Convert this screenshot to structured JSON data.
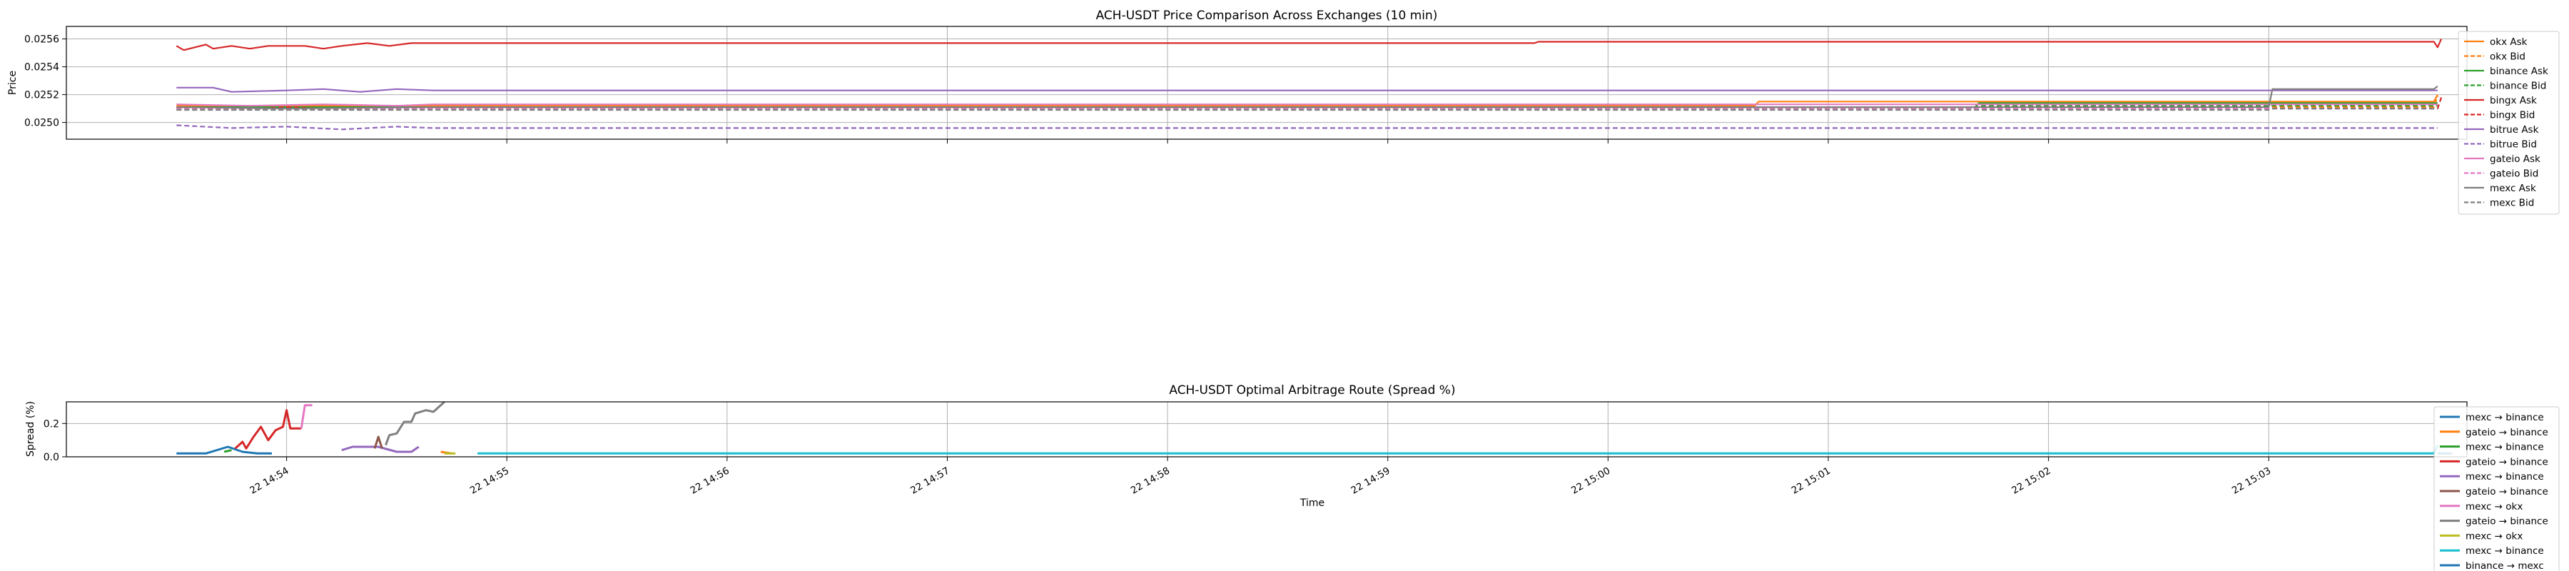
{
  "chart_data": [
    {
      "type": "line",
      "title": "ACH-USDT Price Comparison Across Exchanges (10 min)",
      "xlabel": "",
      "ylabel": "Price",
      "ylim": [
        0.02488,
        0.02569
      ],
      "xlim": [
        "14:53:00",
        "15:03:54"
      ],
      "yticks": [
        "0.0250",
        "0.0252",
        "0.0254",
        "0.0256"
      ],
      "grid": true,
      "legend": "top-right",
      "series": [
        {
          "name": "okx Ask",
          "color": "#ff7f0e",
          "dash": "solid",
          "points": [
            [
              "14:53:30",
              0.02512
            ],
            [
              "15:00:40",
              0.02512
            ],
            [
              "15:00:41",
              0.02515
            ],
            [
              "15:03:45",
              0.02515
            ],
            [
              "15:03:46",
              0.0252
            ]
          ]
        },
        {
          "name": "okx Bid",
          "color": "#ff7f0e",
          "dash": "dashed",
          "points": [
            [
              "14:53:30",
              0.0251
            ],
            [
              "15:00:40",
              0.0251
            ],
            [
              "15:00:41",
              0.02511
            ],
            [
              "15:03:45",
              0.02511
            ],
            [
              "15:03:46",
              0.02519
            ]
          ]
        },
        {
          "name": "binance Ask",
          "color": "#2ca02c",
          "dash": "solid",
          "points": [
            [
              "14:53:30",
              0.02511
            ],
            [
              "15:01:40",
              0.02511
            ],
            [
              "15:01:41",
              0.02514
            ],
            [
              "15:03:46",
              0.02514
            ]
          ]
        },
        {
          "name": "binance Bid",
          "color": "#2ca02c",
          "dash": "dashed",
          "points": [
            [
              "14:53:30",
              0.0251
            ],
            [
              "15:01:40",
              0.0251
            ],
            [
              "15:01:41",
              0.02512
            ],
            [
              "15:03:46",
              0.02512
            ]
          ]
        },
        {
          "name": "bingx Ask",
          "color": "#d62728",
          "dash": "solid",
          "points": [
            [
              "14:53:30",
              0.02555
            ],
            [
              "14:53:32",
              0.02552
            ],
            [
              "14:53:35",
              0.02554
            ],
            [
              "14:53:38",
              0.02556
            ],
            [
              "14:53:40",
              0.02553
            ],
            [
              "14:53:45",
              0.02555
            ],
            [
              "14:53:50",
              0.02553
            ],
            [
              "14:53:55",
              0.02555
            ],
            [
              "14:54:05",
              0.02555
            ],
            [
              "14:54:10",
              0.02553
            ],
            [
              "14:54:15",
              0.02555
            ],
            [
              "14:54:22",
              0.02557
            ],
            [
              "14:54:28",
              0.02555
            ],
            [
              "14:54:34",
              0.02557
            ],
            [
              "14:54:40",
              0.02557
            ],
            [
              "14:59:40",
              0.02557
            ],
            [
              "14:59:41",
              0.02558
            ],
            [
              "15:03:45",
              0.02558
            ],
            [
              "15:03:46",
              0.02554
            ],
            [
              "15:03:47",
              0.0256
            ]
          ]
        },
        {
          "name": "bingx Bid",
          "color": "#d62728",
          "dash": "dashed",
          "points": [
            [
              "14:53:30",
              0.02511
            ],
            [
              "14:53:45",
              0.02509
            ],
            [
              "14:54:00",
              0.02511
            ],
            [
              "14:54:20",
              0.02509
            ],
            [
              "14:54:40",
              0.0251
            ],
            [
              "15:03:46",
              0.0251
            ],
            [
              "15:03:47",
              0.02518
            ]
          ]
        },
        {
          "name": "bitrue Ask",
          "color": "#9467bd",
          "dash": "solid",
          "points": [
            [
              "14:53:30",
              0.02525
            ],
            [
              "14:53:40",
              0.02525
            ],
            [
              "14:53:45",
              0.02522
            ],
            [
              "14:54:00",
              0.02523
            ],
            [
              "14:54:10",
              0.02524
            ],
            [
              "14:54:20",
              0.02522
            ],
            [
              "14:54:30",
              0.02524
            ],
            [
              "14:54:40",
              0.02523
            ],
            [
              "15:03:46",
              0.02523
            ]
          ]
        },
        {
          "name": "bitrue Bid",
          "color": "#9467bd",
          "dash": "dashed",
          "points": [
            [
              "14:53:30",
              0.02498
            ],
            [
              "14:53:45",
              0.02496
            ],
            [
              "14:54:00",
              0.02497
            ],
            [
              "14:54:15",
              0.02495
            ],
            [
              "14:54:30",
              0.02497
            ],
            [
              "14:54:40",
              0.02496
            ],
            [
              "15:03:46",
              0.02496
            ]
          ]
        },
        {
          "name": "gateio Ask",
          "color": "#e377c2",
          "dash": "solid",
          "points": [
            [
              "14:53:30",
              0.02513
            ],
            [
              "14:53:50",
              0.02512
            ],
            [
              "14:54:10",
              0.02513
            ],
            [
              "14:54:30",
              0.02512
            ],
            [
              "14:54:40",
              0.02513
            ],
            [
              "15:03:46",
              0.02513
            ]
          ]
        },
        {
          "name": "gateio Bid",
          "color": "#e377c2",
          "dash": "dashed",
          "points": [
            [
              "14:53:30",
              0.0251
            ],
            [
              "14:54:00",
              0.02509
            ],
            [
              "14:54:20",
              0.0251
            ],
            [
              "15:03:46",
              0.0251
            ]
          ]
        },
        {
          "name": "mexc Ask",
          "color": "#7f7f7f",
          "dash": "solid",
          "points": [
            [
              "14:53:30",
              0.02511
            ],
            [
              "14:54:00",
              0.0251
            ],
            [
              "14:54:40",
              0.02511
            ],
            [
              "15:03:00",
              0.02511
            ],
            [
              "15:03:01",
              0.02524
            ],
            [
              "15:03:45",
              0.02524
            ],
            [
              "15:03:46",
              0.02526
            ]
          ]
        },
        {
          "name": "mexc Bid",
          "color": "#7f7f7f",
          "dash": "dashed",
          "points": [
            [
              "14:53:30",
              0.02509
            ],
            [
              "14:54:40",
              0.02509
            ],
            [
              "15:03:00",
              0.02509
            ],
            [
              "15:03:01",
              0.0251
            ],
            [
              "15:03:46",
              0.0251
            ]
          ]
        }
      ]
    },
    {
      "type": "line",
      "title": "ACH-USDT Optimal Arbitrage Route (Spread %)",
      "xlabel": "Time",
      "ylabel": "Spread (%)",
      "ylim": [
        0.0,
        0.33
      ],
      "xlim": [
        "14:53:00",
        "15:03:54"
      ],
      "yticks": [
        "0.0",
        "0.2"
      ],
      "xticks": [
        "22 14:54",
        "22 14:55",
        "22 14:56",
        "22 14:57",
        "22 14:58",
        "22 14:59",
        "22 15:00",
        "22 15:01",
        "22 15:02",
        "22 15:03"
      ],
      "grid": true,
      "legend": "right",
      "series": [
        {
          "name": "mexc → binance",
          "color": "#1f77b4",
          "points": [
            [
              "14:53:30",
              0.02
            ],
            [
              "14:53:38",
              0.02
            ],
            [
              "14:53:44",
              0.06
            ],
            [
              "14:53:48",
              0.03
            ],
            [
              "14:53:52",
              0.02
            ],
            [
              "14:53:56",
              0.02
            ]
          ]
        },
        {
          "name": "gateio → binance",
          "color": "#ff7f0e",
          "points": [
            [
              "14:54:42",
              0.03
            ],
            [
              "14:54:45",
              0.02
            ]
          ]
        },
        {
          "name": "mexc → binance",
          "color": "#2ca02c",
          "points": [
            [
              "14:53:43",
              0.03
            ],
            [
              "14:53:45",
              0.04
            ]
          ]
        },
        {
          "name": "gateio → binance",
          "color": "#d62728",
          "points": [
            [
              "14:53:46",
              0.05
            ],
            [
              "14:53:48",
              0.09
            ],
            [
              "14:53:49",
              0.05
            ],
            [
              "14:53:51",
              0.12
            ],
            [
              "14:53:53",
              0.18
            ],
            [
              "14:53:55",
              0.1
            ],
            [
              "14:53:57",
              0.16
            ],
            [
              "14:53:59",
              0.18
            ],
            [
              "14:54:00",
              0.28
            ],
            [
              "14:54:01",
              0.17
            ],
            [
              "14:54:04",
              0.17
            ]
          ]
        },
        {
          "name": "mexc → binance",
          "color": "#9467bd",
          "points": [
            [
              "14:54:15",
              0.04
            ],
            [
              "14:54:18",
              0.06
            ],
            [
              "14:54:25",
              0.06
            ],
            [
              "14:54:30",
              0.03
            ],
            [
              "14:54:34",
              0.03
            ],
            [
              "14:54:36",
              0.06
            ]
          ]
        },
        {
          "name": "gateio → binance",
          "color": "#8c564b",
          "points": [
            [
              "14:54:24",
              0.05
            ],
            [
              "14:54:25",
              0.12
            ],
            [
              "14:54:26",
              0.05
            ]
          ]
        },
        {
          "name": "mexc → okx",
          "color": "#e377c2",
          "points": [
            [
              "14:54:04",
              0.17
            ],
            [
              "14:54:05",
              0.31
            ],
            [
              "14:54:07",
              0.31
            ]
          ]
        },
        {
          "name": "gateio → binance",
          "color": "#7f7f7f",
          "points": [
            [
              "14:54:27",
              0.07
            ],
            [
              "14:54:28",
              0.13
            ],
            [
              "14:54:30",
              0.14
            ],
            [
              "14:54:32",
              0.21
            ],
            [
              "14:54:34",
              0.21
            ],
            [
              "14:54:35",
              0.26
            ],
            [
              "14:54:38",
              0.28
            ],
            [
              "14:54:40",
              0.27
            ],
            [
              "14:54:43",
              0.33
            ]
          ]
        },
        {
          "name": "mexc → okx",
          "color": "#bcbd22",
          "points": [
            [
              "14:54:43",
              0.02
            ],
            [
              "14:54:46",
              0.02
            ]
          ]
        },
        {
          "name": "mexc → binance",
          "color": "#17becf",
          "points": [
            [
              "14:54:52",
              0.02
            ],
            [
              "15:03:45",
              0.02
            ],
            [
              "15:03:46",
              0.07
            ]
          ]
        },
        {
          "name": "binance → mexc",
          "color": "#1f77b4",
          "points": [
            [
              "15:03:46",
              0.02
            ],
            [
              "15:03:50",
              0.02
            ]
          ]
        }
      ]
    }
  ]
}
